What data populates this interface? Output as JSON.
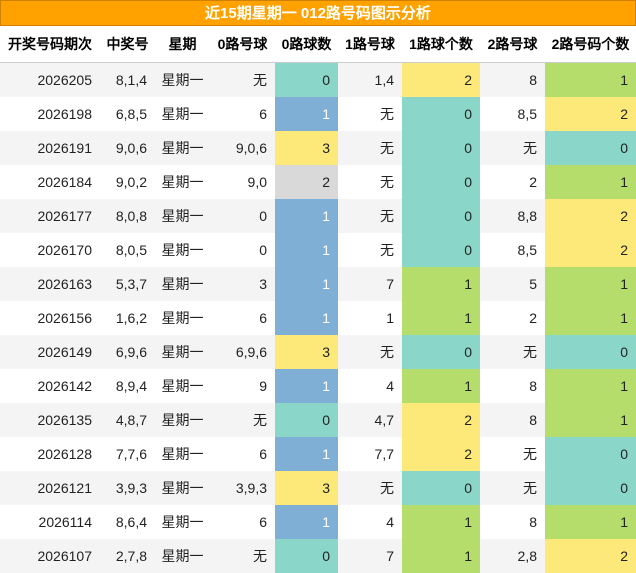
{
  "title": "近15期星期一 012路号码图示分析",
  "table": {
    "header": [
      "开奖号码期次",
      "中奖号",
      "星期",
      "0路号球",
      "0路球数",
      "1路号球",
      "1路球个数",
      "2路号球",
      "2路号码个数"
    ],
    "rows": [
      [
        2026205,
        "8,1,4",
        "星期一",
        "无",
        0,
        "1,4",
        2,
        8,
        1
      ],
      [
        2026198,
        "6,8,5",
        "星期一",
        6,
        1,
        "无",
        0,
        "8,5",
        2
      ],
      [
        2026191,
        "9,0,6",
        "星期一",
        "9,0,6",
        3,
        "无",
        0,
        "无",
        0
      ],
      [
        2026184,
        "9,0,2",
        "星期一",
        "9,0",
        2,
        "无",
        0,
        2,
        1
      ],
      [
        2026177,
        "8,0,8",
        "星期一",
        0,
        1,
        "无",
        0,
        "8,8",
        2
      ],
      [
        2026170,
        "8,0,5",
        "星期一",
        0,
        1,
        "无",
        0,
        "8,5",
        2
      ],
      [
        2026163,
        "5,3,7",
        "星期一",
        3,
        1,
        7,
        1,
        5,
        1
      ],
      [
        2026156,
        "1,6,2",
        "星期一",
        6,
        1,
        1,
        1,
        2,
        1
      ],
      [
        2026149,
        "6,9,6",
        "星期一",
        "6,9,6",
        3,
        "无",
        0,
        "无",
        0
      ],
      [
        2026142,
        "8,9,4",
        "星期一",
        9,
        1,
        4,
        1,
        8,
        1
      ],
      [
        2026135,
        "4,8,7",
        "星期一",
        "无",
        0,
        "4,7",
        2,
        8,
        1
      ],
      [
        2026128,
        "7,7,6",
        "星期一",
        6,
        1,
        "7,7",
        2,
        "无",
        0
      ],
      [
        2026121,
        "3,9,3",
        "星期一",
        "3,9,3",
        3,
        "无",
        0,
        "无",
        0
      ],
      [
        2026114,
        "8,6,4",
        "星期一",
        6,
        1,
        4,
        1,
        8,
        1
      ],
      [
        2026107,
        "2,7,8",
        "星期一",
        "无",
        0,
        7,
        1,
        "2,8",
        2
      ]
    ]
  }
}
